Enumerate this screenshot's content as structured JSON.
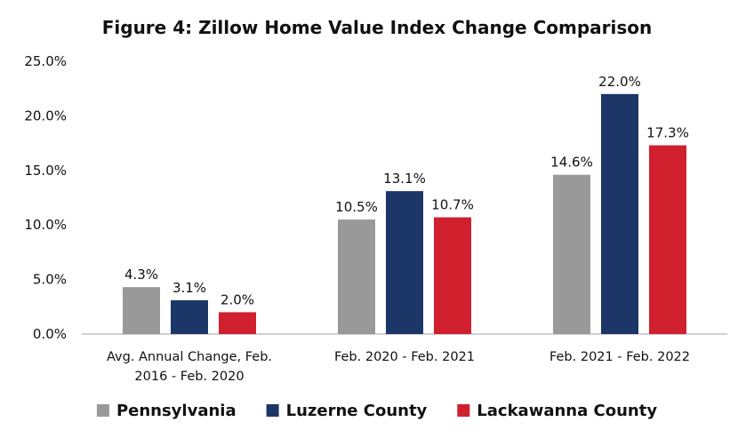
{
  "chart_data": {
    "type": "bar",
    "title": "Figure 4: Zillow Home Value Index Change Comparison",
    "xlabel": "",
    "ylabel": "",
    "ylim": [
      0,
      25
    ],
    "yticks": [
      "0.0%",
      "5.0%",
      "10.0%",
      "15.0%",
      "20.0%",
      "25.0%"
    ],
    "categories": [
      [
        "Avg. Annual Change, Feb.",
        "2016 - Feb. 2020"
      ],
      [
        "Feb. 2020 - Feb. 2021"
      ],
      [
        "Feb. 2021 - Feb. 2022"
      ]
    ],
    "series": [
      {
        "name": "Pennsylvania",
        "color": "#999999",
        "values": [
          4.3,
          10.5,
          14.6
        ],
        "labels": [
          "4.3%",
          "10.5%",
          "14.6%"
        ]
      },
      {
        "name": "Luzerne County",
        "color": "#1c3668",
        "values": [
          3.1,
          13.1,
          22.0
        ],
        "labels": [
          "3.1%",
          "13.1%",
          "22.0%"
        ]
      },
      {
        "name": "Lackawanna County",
        "color": "#d0202e",
        "values": [
          2.0,
          10.7,
          17.3
        ],
        "labels": [
          "2.0%",
          "10.7%",
          "17.3%"
        ]
      }
    ],
    "grid": false,
    "legend": "bottom"
  }
}
